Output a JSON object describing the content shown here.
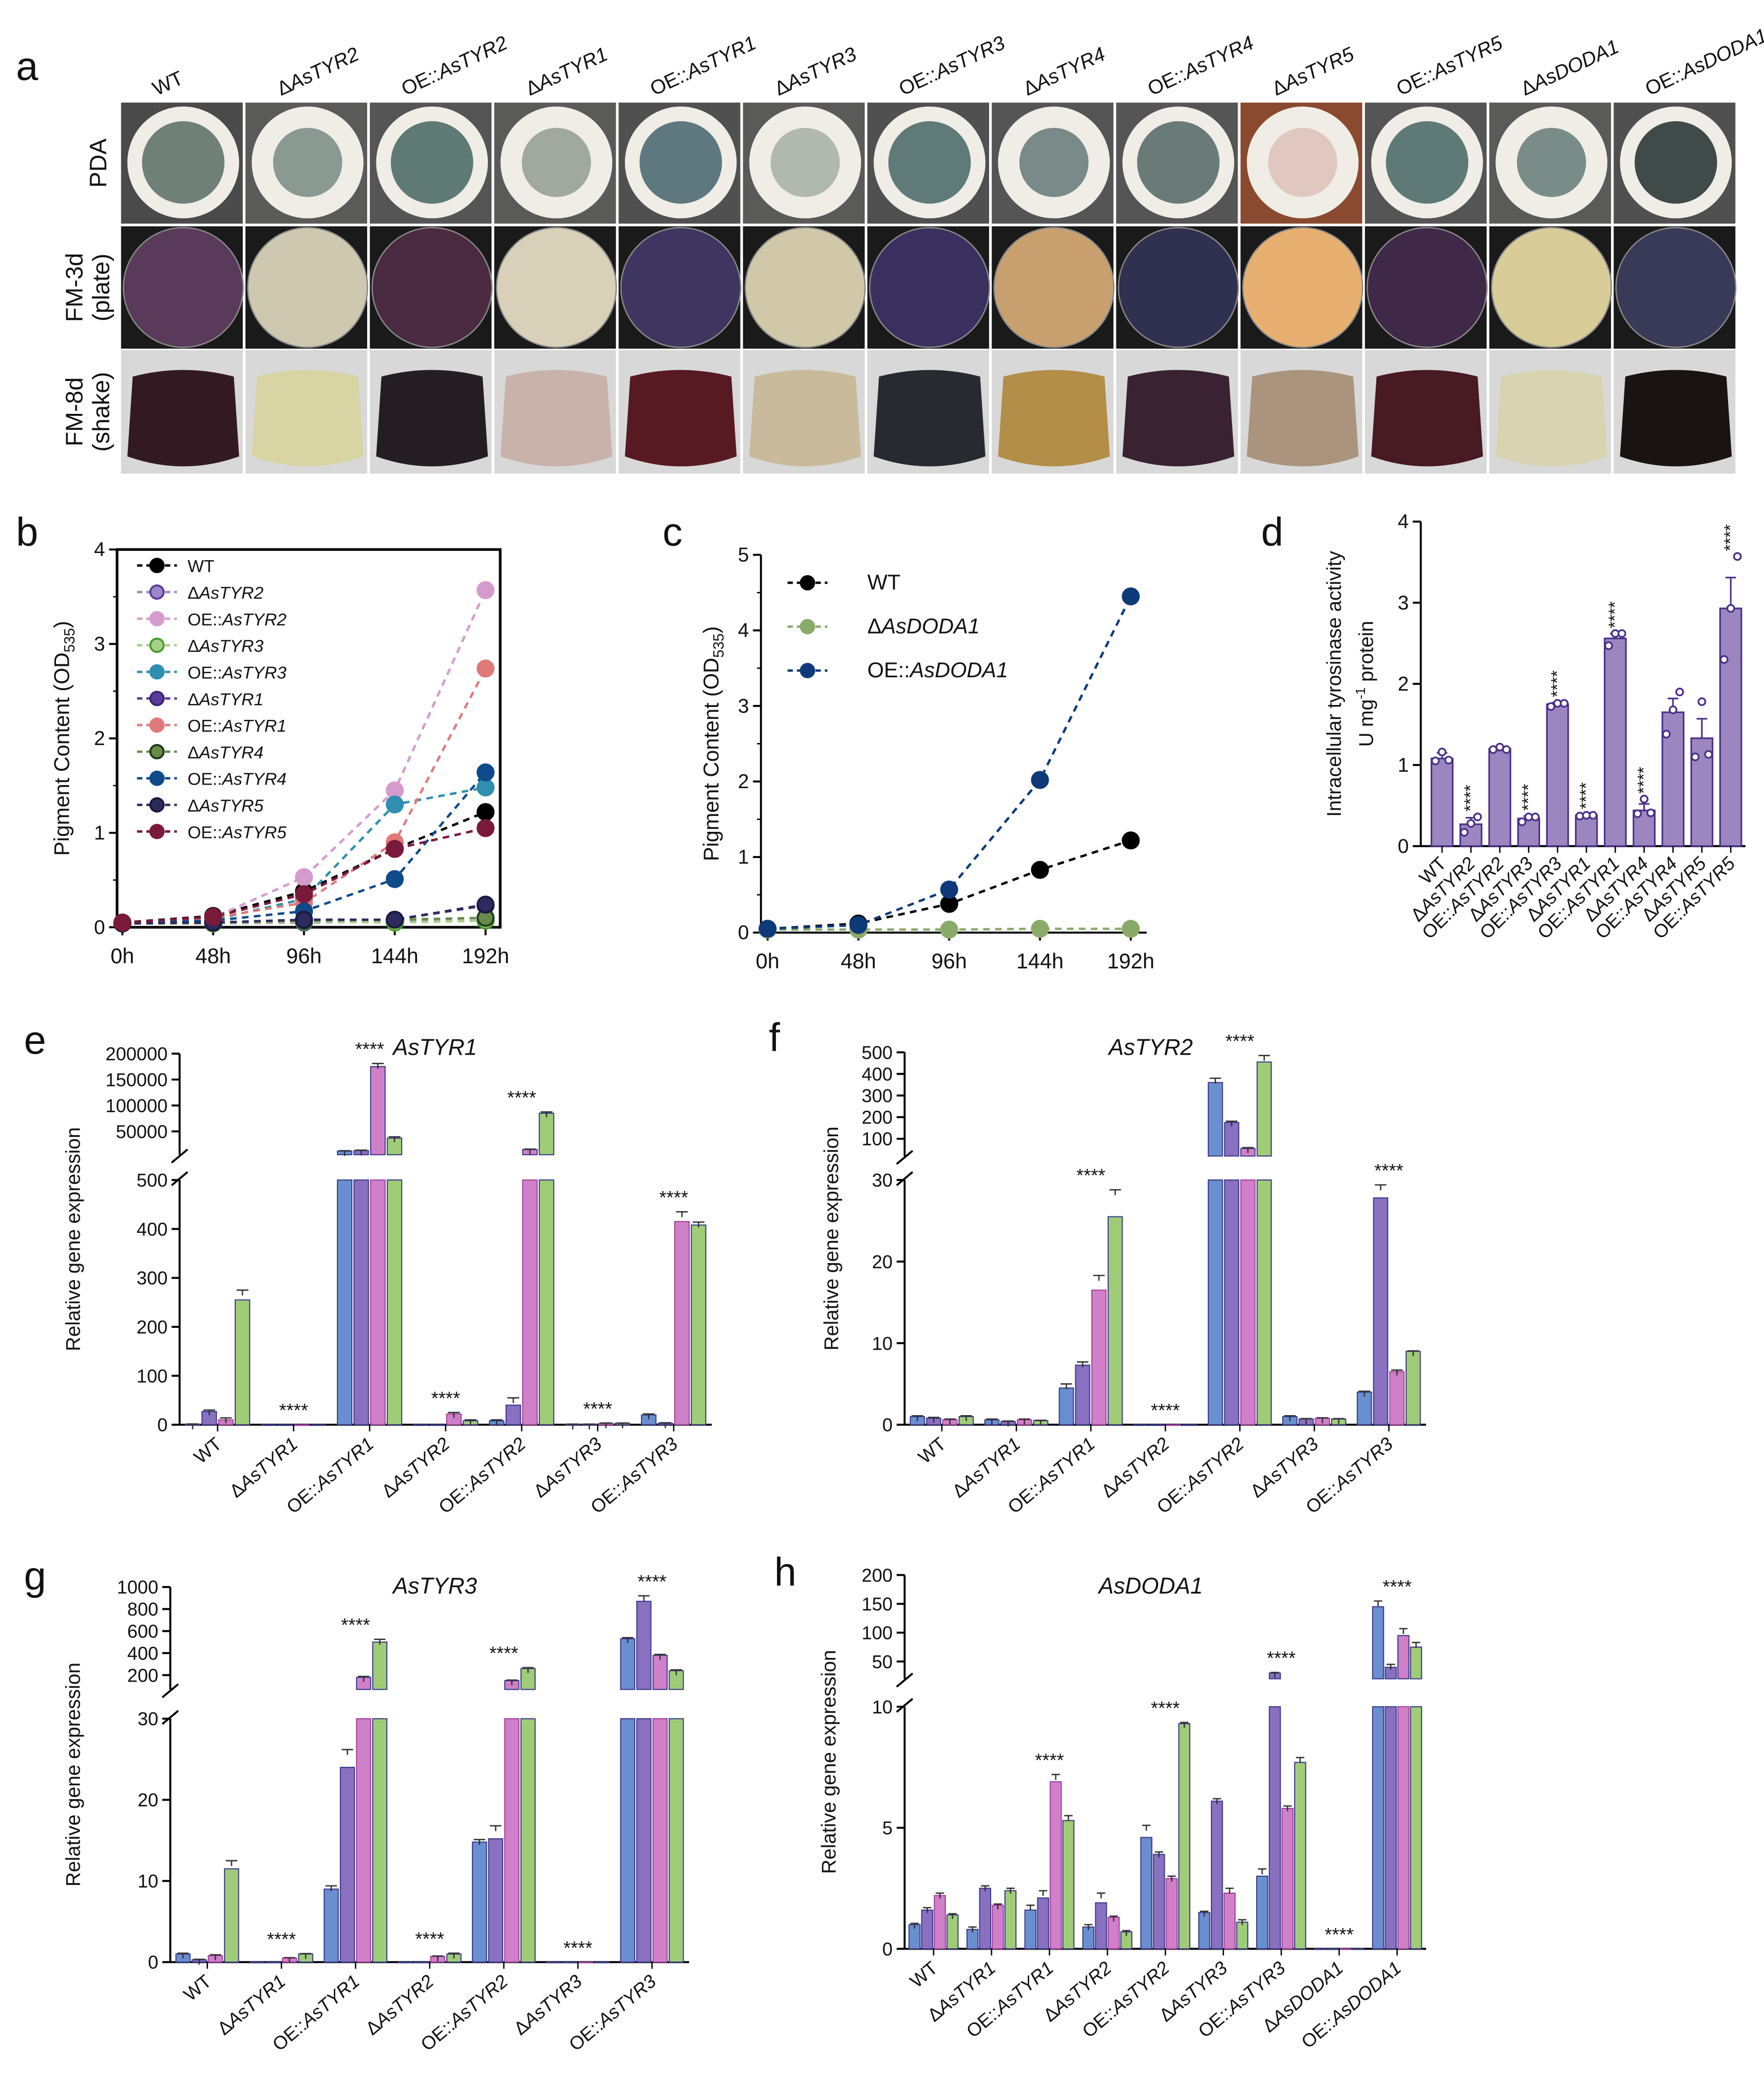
{
  "panel_letters": {
    "a": "a",
    "b": "b",
    "c": "c",
    "d": "d",
    "e": "e",
    "f": "f",
    "g": "g",
    "h": "h"
  },
  "panel_a": {
    "columns": [
      "WT",
      "ΔAsTYR2",
      "OE::AsTYR2",
      "ΔAsTYR1",
      "OE::AsTYR1",
      "ΔAsTYR3",
      "OE::AsTYR3",
      "ΔAsTYR4",
      "OE::AsTYR4",
      "ΔAsTYR5",
      "OE::AsTYR5",
      "ΔAsDODA1",
      "OE::AsDODA1"
    ],
    "rows": [
      {
        "label": [
          "PDA"
        ]
      },
      {
        "label": [
          "FM-3d",
          "(plate)"
        ]
      },
      {
        "label": [
          "FM-8d",
          "(shake)"
        ]
      }
    ],
    "pda_bg": [
      "#4a4a4a",
      "#5a5a58",
      "#555",
      "#5a5a58",
      "#505050",
      "#5a5a58",
      "#505050",
      "#555",
      "#555",
      "#8a4a30",
      "#555",
      "#5a5a58",
      "#505050"
    ],
    "pda_center": [
      "#6f8078",
      "#8a9a92",
      "#5f7a74",
      "#a0a8a0",
      "#5f7880",
      "#b0b8b0",
      "#5f7a78",
      "#7a8a88",
      "#6a7a78",
      "#e0c8c0",
      "#5f7a76",
      "#7a8c88",
      "#404a48"
    ],
    "plate_colors": [
      "#5a3a5a",
      "#cfc8b0",
      "#4a2a40",
      "#d8d0b8",
      "#3e3560",
      "#d0c8a8",
      "#3a3060",
      "#c8a070",
      "#303050",
      "#e8b070",
      "#402848",
      "#d8cc98",
      "#383a58"
    ],
    "flask_colors": [
      "#2a1018",
      "#d8d4a0",
      "#1a1418",
      "#c8b0a8",
      "#501018",
      "#c8b898",
      "#202028",
      "#b08a40",
      "#301828",
      "#a89078",
      "#401018",
      "#d8d4b0",
      "#100808"
    ]
  },
  "chart_data": [
    {
      "id": "b",
      "type": "line",
      "ylabel": "Pigment Content (OD535)",
      "ylabel_main": "Pigment Content (OD",
      "ylabel_sub": "535",
      "ylabel_end": ")",
      "x": [
        "0h",
        "48h",
        "96h",
        "144h",
        "192h"
      ],
      "yticks": [
        "0",
        "1",
        "2",
        "3",
        "4"
      ],
      "ylim": [
        0,
        4
      ],
      "legend_position": "top-left",
      "series": [
        {
          "name": "WT",
          "color": "#000000",
          "edge": "#000000",
          "values": [
            0.05,
            0.12,
            0.38,
            0.83,
            1.22
          ]
        },
        {
          "name": "ΔAsTYR2",
          "color": "#9b87c9",
          "edge": "#5a3d9a",
          "values": [
            0.04,
            0.04,
            0.05,
            0.06,
            0.07
          ]
        },
        {
          "name": "OE::AsTYR2",
          "color": "#d49bcc",
          "edge": "#d49bcc",
          "values": [
            0.05,
            0.1,
            0.53,
            1.45,
            3.57
          ]
        },
        {
          "name": "ΔAsTYR3",
          "color": "#a6d08a",
          "edge": "#4a9a2a",
          "values": [
            0.04,
            0.04,
            0.06,
            0.05,
            0.07
          ]
        },
        {
          "name": "OE::AsTYR3",
          "color": "#2f8fb0",
          "edge": "#2f8fb0",
          "values": [
            0.05,
            0.08,
            0.3,
            1.3,
            1.48
          ]
        },
        {
          "name": "ΔAsTYR1",
          "color": "#5a3d9a",
          "edge": "#3a2470",
          "values": [
            0.04,
            0.05,
            0.08,
            0.08,
            0.23
          ]
        },
        {
          "name": "OE::AsTYR1",
          "color": "#e07a7a",
          "edge": "#e07a7a",
          "values": [
            0.05,
            0.1,
            0.26,
            0.9,
            2.74
          ]
        },
        {
          "name": "ΔAsTYR4",
          "color": "#6a8a4a",
          "edge": "#1c3a1c",
          "values": [
            0.04,
            0.05,
            0.07,
            0.08,
            0.1
          ]
        },
        {
          "name": "OE::AsTYR4",
          "color": "#0f4a8a",
          "edge": "#0f4a8a",
          "values": [
            0.05,
            0.07,
            0.17,
            0.51,
            1.64
          ]
        },
        {
          "name": "ΔAsTYR5",
          "color": "#2e2a5e",
          "edge": "#1a1840",
          "values": [
            0.04,
            0.05,
            0.08,
            0.08,
            0.24
          ]
        },
        {
          "name": "OE::AsTYR5",
          "color": "#7a1a3a",
          "edge": "#7a1a3a",
          "values": [
            0.05,
            0.11,
            0.35,
            0.83,
            1.05
          ]
        }
      ]
    },
    {
      "id": "c",
      "type": "line",
      "ylabel": "Pigment Content (OD535)",
      "ylabel_main": "Pigment Content (OD",
      "ylabel_sub": "535",
      "ylabel_end": ")",
      "x": [
        "0h",
        "48h",
        "96h",
        "144h",
        "192h"
      ],
      "yticks": [
        "0",
        "1",
        "2",
        "3",
        "4",
        "5"
      ],
      "ylim": [
        0,
        5
      ],
      "legend_position": "top-left",
      "series": [
        {
          "name": "WT",
          "color": "#000000",
          "edge": "#000000",
          "values": [
            0.05,
            0.12,
            0.38,
            0.83,
            1.22
          ]
        },
        {
          "name": "ΔAsDODA1",
          "color": "#8aaa6a",
          "edge": "#8aaa6a",
          "values": [
            0.04,
            0.04,
            0.04,
            0.05,
            0.05
          ]
        },
        {
          "name": "OE::AsDODA1",
          "color": "#0f3a7a",
          "edge": "#0f3a7a",
          "values": [
            0.05,
            0.1,
            0.57,
            2.02,
            4.45
          ]
        }
      ]
    },
    {
      "id": "d",
      "type": "bar",
      "ylabel": "Intracellular tyrosinase activity",
      "ylabel2_main": "U mg",
      "ylabel2_sup": "-1",
      "ylabel2_end": " protein",
      "categories": [
        "WT",
        "ΔAsTYR2",
        "OE::AsTYR2",
        "ΔAsTYR3",
        "OE::AsTYR3",
        "ΔAsTYR1",
        "OE::AsTYR1",
        "ΔAsTYR4",
        "OE::AsTYR4",
        "ΔAsTYR5",
        "OE::AsTYR5"
      ],
      "values": [
        1.08,
        0.27,
        1.2,
        0.34,
        1.75,
        0.38,
        2.56,
        0.44,
        1.65,
        1.33,
        2.93
      ],
      "errors": [
        0.07,
        0.08,
        0.02,
        0.03,
        0.02,
        0.01,
        0.06,
        0.08,
        0.17,
        0.24,
        0.38
      ],
      "points": [
        [
          1.05,
          1.16,
          1.06
        ],
        [
          0.17,
          0.28,
          0.36
        ],
        [
          1.19,
          1.22,
          1.19
        ],
        [
          0.3,
          0.36,
          0.36
        ],
        [
          1.72,
          1.76,
          1.76
        ],
        [
          0.37,
          0.38,
          0.38
        ],
        [
          2.47,
          2.62,
          2.62
        ],
        [
          0.4,
          0.58,
          0.41
        ],
        [
          1.38,
          1.68,
          1.9
        ],
        [
          1.1,
          1.78,
          1.13
        ],
        [
          2.3,
          2.93,
          3.57
        ]
      ],
      "significance": [
        "",
        "****",
        "",
        "****",
        "****",
        "****",
        "****",
        "****",
        "",
        "",
        "****"
      ],
      "yticks": [
        "0",
        "1",
        "2",
        "3",
        "4"
      ],
      "ylim": [
        0,
        4
      ],
      "color": "#9c86c0",
      "edge": "#4a2f8a"
    },
    {
      "id": "e",
      "type": "bar",
      "title": "AsTYR1",
      "ylabel": "Relative gene expression",
      "categories": [
        "WT",
        "ΔAsTYR1",
        "OE::AsTYR1",
        "ΔAsTYR2",
        "OE::AsTYR2",
        "ΔAsTYR3",
        "OE::AsTYR3"
      ],
      "series_colors": [
        "#6a8fd0",
        "#8a70c0",
        "#d080c8",
        "#a0cc78"
      ],
      "values": [
        [
          1,
          27,
          10,
          255
        ],
        [
          0,
          0,
          0,
          0
        ],
        [
          12000,
          13000,
          175000,
          37000
        ],
        [
          0,
          0,
          22,
          8
        ],
        [
          8,
          40,
          15000,
          85000
        ],
        [
          1,
          1,
          3,
          3
        ],
        [
          20,
          3,
          415,
          408
        ]
      ],
      "errors": [
        [
          0.5,
          3,
          4,
          20
        ],
        [
          0,
          0,
          0,
          0
        ],
        [
          800,
          900,
          6000,
          2500
        ],
        [
          0,
          0,
          3,
          2
        ],
        [
          2,
          15,
          800,
          2500
        ],
        [
          0.3,
          0.3,
          0.5,
          0.5
        ],
        [
          2,
          1,
          20,
          6
        ]
      ],
      "significance": [
        "",
        "****",
        "****",
        "****",
        "****",
        "****",
        "****"
      ],
      "yticks_lower": [
        "0",
        "100",
        "200",
        "300",
        "400",
        "500"
      ],
      "ylim_lower": [
        0,
        500
      ],
      "yticks_upper": [
        "50000",
        "100000",
        "150000",
        "200000"
      ],
      "ylim_upper": [
        5000,
        200000
      ]
    },
    {
      "id": "f",
      "type": "bar",
      "title": "AsTYR2",
      "ylabel": "Relative gene expression",
      "categories": [
        "WT",
        "ΔAsTYR1",
        "OE::AsTYR1",
        "ΔAsTYR2",
        "OE::AsTYR2",
        "ΔAsTYR3",
        "OE::AsTYR3"
      ],
      "series_colors": [
        "#6a8fd0",
        "#8a70c0",
        "#d080c8",
        "#a0cc78"
      ],
      "values": [
        [
          1,
          0.8,
          0.6,
          1
        ],
        [
          0.6,
          0.4,
          0.6,
          0.5
        ],
        [
          4.5,
          7.3,
          16.5,
          25.5
        ],
        [
          0,
          0,
          0,
          0
        ],
        [
          360,
          175,
          55,
          455
        ],
        [
          1,
          0.7,
          0.8,
          0.7
        ],
        [
          4,
          27.8,
          6.5,
          9
        ]
      ],
      "errors": [
        [
          0.1,
          0.1,
          0.1,
          0.1
        ],
        [
          0.1,
          0.05,
          0.1,
          0.05
        ],
        [
          0.5,
          0.4,
          1.8,
          3.3
        ],
        [
          0,
          0,
          0,
          0
        ],
        [
          20,
          6,
          4,
          30
        ],
        [
          0.1,
          0.05,
          0.05,
          0.05
        ],
        [
          0.1,
          1.6,
          0.2,
          0.05
        ]
      ],
      "significance": [
        "",
        "",
        "****",
        "****",
        "****",
        "",
        "****"
      ],
      "yticks_lower": [
        "0",
        "10",
        "20",
        "30"
      ],
      "ylim_lower": [
        0,
        30
      ],
      "yticks_upper": [
        "100",
        "200",
        "300",
        "400",
        "500"
      ],
      "ylim_upper": [
        20,
        500
      ]
    },
    {
      "id": "g",
      "type": "bar",
      "title": "AsTYR3",
      "ylabel": "Relative gene expression",
      "categories": [
        "WT",
        "ΔAsTYR1",
        "OE::AsTYR1",
        "ΔAsTYR2",
        "OE::AsTYR2",
        "ΔAsTYR3",
        "OE::AsTYR3"
      ],
      "series_colors": [
        "#6a8fd0",
        "#8a70c0",
        "#d080c8",
        "#a0cc78"
      ],
      "values": [
        [
          1,
          0.3,
          0.8,
          11.5
        ],
        [
          0,
          0,
          0.5,
          1
        ],
        [
          9,
          24,
          180,
          500
        ],
        [
          0,
          0,
          0.7,
          1
        ],
        [
          14.8,
          15.2,
          150,
          260
        ],
        [
          0,
          0,
          0,
          0
        ],
        [
          530,
          870,
          380,
          240
        ]
      ],
      "errors": [
        [
          0.1,
          0.05,
          0.1,
          1
        ],
        [
          0,
          0,
          0.05,
          0.05
        ],
        [
          0.4,
          2.2,
          8,
          25
        ],
        [
          0,
          0,
          0.05,
          0.1
        ],
        [
          0.3,
          1.6,
          5,
          8
        ],
        [
          0,
          0,
          0,
          0
        ],
        [
          10,
          50,
          8,
          8
        ]
      ],
      "significance": [
        "",
        "****",
        "****",
        "****",
        "****",
        "****",
        "****"
      ],
      "yticks_lower": [
        "0",
        "10",
        "20",
        "30"
      ],
      "ylim_lower": [
        0,
        30
      ],
      "yticks_upper": [
        "200",
        "400",
        "600",
        "800",
        "1000"
      ],
      "ylim_upper": [
        70,
        1000
      ]
    },
    {
      "id": "h",
      "type": "bar",
      "title": "AsDODA1",
      "ylabel": "Relative gene expression",
      "categories": [
        "WT",
        "ΔAsTYR1",
        "OE::AsTYR1",
        "ΔAsTYR2",
        "OE::AsTYR2",
        "ΔAsTYR3",
        "OE::AsTYR3",
        "ΔAsDODA1",
        "OE::AsDODA1"
      ],
      "series_colors": [
        "#6a8fd0",
        "#8a70c0",
        "#d080c8",
        "#a0cc78"
      ],
      "values": [
        [
          1,
          1.6,
          2.2,
          1.4
        ],
        [
          0.8,
          2.5,
          1.8,
          2.4
        ],
        [
          1.6,
          2.1,
          6.9,
          5.3
        ],
        [
          0.9,
          1.9,
          1.3,
          0.7
        ],
        [
          4.6,
          3.9,
          2.9,
          9.3
        ],
        [
          1.5,
          6.1,
          2.3,
          1.1
        ],
        [
          3,
          30,
          5.8,
          7.7
        ],
        [
          0,
          0,
          0,
          0
        ],
        [
          145,
          40,
          95,
          75
        ]
      ],
      "errors": [
        [
          0.05,
          0.1,
          0.1,
          0.05
        ],
        [
          0.1,
          0.1,
          0.05,
          0.1
        ],
        [
          0.2,
          0.3,
          0.3,
          0.2
        ],
        [
          0.1,
          0.4,
          0.05,
          0.05
        ],
        [
          0.5,
          0.1,
          0.1,
          0.05
        ],
        [
          0.05,
          0.1,
          0.2,
          0.1
        ],
        [
          0.3,
          1,
          0.1,
          0.2
        ],
        [
          0,
          0,
          0,
          0
        ],
        [
          10,
          5,
          12,
          8
        ]
      ],
      "significance": [
        "",
        "",
        "****",
        "",
        "****",
        "",
        "****",
        "****",
        "****"
      ],
      "yticks_lower": [
        "0",
        "5",
        "10"
      ],
      "ylim_lower": [
        0,
        10
      ],
      "yticks_upper": [
        "50",
        "100",
        "150",
        "200"
      ],
      "ylim_upper": [
        20,
        200
      ]
    }
  ]
}
